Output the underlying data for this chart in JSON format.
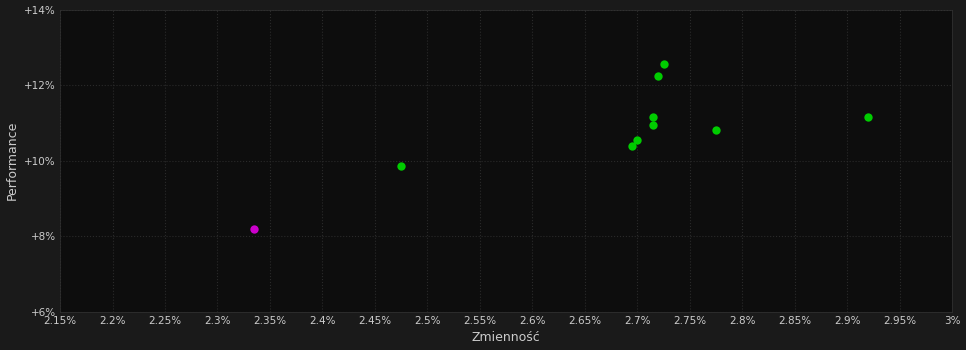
{
  "background_color": "#1a1a1a",
  "plot_bg_color": "#0d0d0d",
  "grid_color": "#2a2a2a",
  "text_color": "#cccccc",
  "xlabel": "Zmienność",
  "ylabel": "Performance",
  "xlim": [
    0.0215,
    0.03
  ],
  "ylim": [
    0.06,
    0.14
  ],
  "yticks": [
    0.06,
    0.08,
    0.1,
    0.12,
    0.14
  ],
  "ytick_labels": [
    "+6%",
    "+8%",
    "+10%",
    "+12%",
    "+14%"
  ],
  "xticks": [
    0.0215,
    0.022,
    0.0225,
    0.023,
    0.0235,
    0.024,
    0.0245,
    0.025,
    0.0255,
    0.026,
    0.0265,
    0.027,
    0.0275,
    0.028,
    0.0285,
    0.029,
    0.0295,
    0.03
  ],
  "xtick_labels": [
    "2.15%",
    "2.2%",
    "2.25%",
    "2.3%",
    "2.35%",
    "2.4%",
    "2.45%",
    "2.5%",
    "2.55%",
    "2.6%",
    "2.65%",
    "2.7%",
    "2.75%",
    "2.8%",
    "2.85%",
    "2.9%",
    "2.95%",
    "3%"
  ],
  "green_points": [
    [
      0.02475,
      0.0985
    ],
    [
      0.02725,
      0.1255
    ],
    [
      0.0272,
      0.1225
    ],
    [
      0.02715,
      0.1115
    ],
    [
      0.02715,
      0.1095
    ],
    [
      0.027,
      0.1055
    ],
    [
      0.02695,
      0.104
    ],
    [
      0.02775,
      0.108
    ],
    [
      0.0292,
      0.1115
    ]
  ],
  "magenta_points": [
    [
      0.02335,
      0.082
    ]
  ],
  "green_color": "#00cc00",
  "magenta_color": "#cc00cc",
  "marker_size": 36,
  "font_size_ticks": 7.5,
  "font_size_label": 9
}
